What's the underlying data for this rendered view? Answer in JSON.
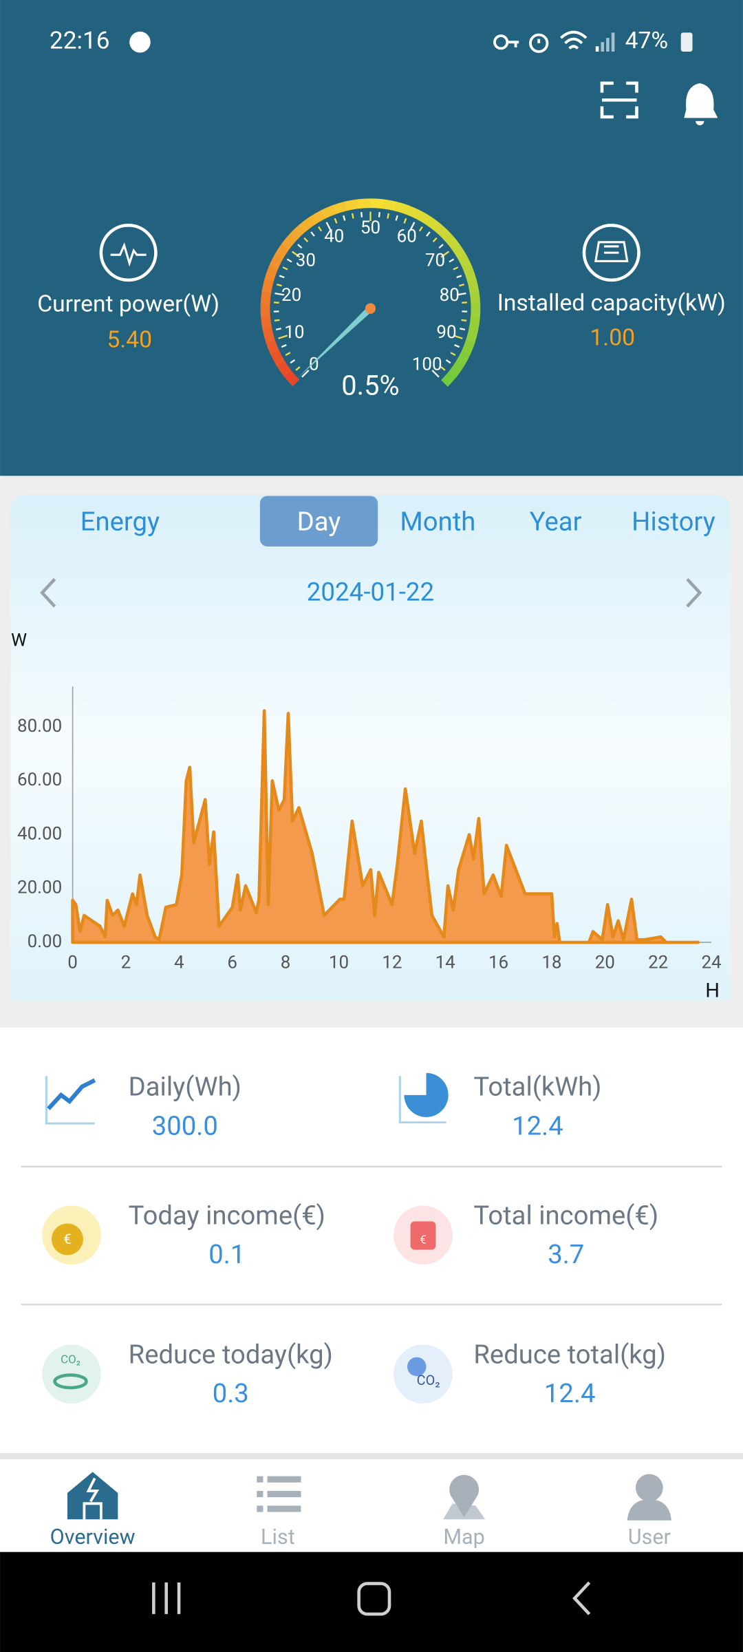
{
  "status_bar": {
    "time": "22:16",
    "battery": "47%"
  },
  "header": {
    "current_power": {
      "label": "Current power(W)",
      "value": "5.40"
    },
    "installed_capacity": {
      "label": "Installed capacity(kW)",
      "value": "1.00"
    },
    "gauge": {
      "ticks": [
        0,
        10,
        20,
        30,
        40,
        50,
        60,
        70,
        80,
        90,
        100
      ],
      "value": 0.5,
      "value_label": "0.5%"
    }
  },
  "tabs": {
    "items": [
      "Energy",
      "Day",
      "Month",
      "Year",
      "History"
    ],
    "selected": 1
  },
  "date": "2024-01-22",
  "chart_data": {
    "type": "area",
    "y_label": "W",
    "x_label": "H",
    "color": "#f39a4d",
    "line_color": "#e4891a",
    "xlim": [
      0,
      24
    ],
    "ylim": [
      0,
      95
    ],
    "xticks": [
      0,
      2,
      4,
      6,
      8,
      10,
      12,
      14,
      16,
      18,
      20,
      22,
      24
    ],
    "yticks": [
      {
        "value": 0,
        "label": "0.00"
      },
      {
        "value": 20,
        "label": "20.00"
      },
      {
        "value": 40,
        "label": "40.00"
      },
      {
        "value": 60,
        "label": "60.00"
      },
      {
        "value": 80,
        "label": "80.00"
      }
    ],
    "x": [
      0,
      0.12,
      0.28,
      0.43,
      1.03,
      1.22,
      1.3,
      1.5,
      1.7,
      1.94,
      2.25,
      2.4,
      2.53,
      2.8,
      3.1,
      3.25,
      3.5,
      3.9,
      4.1,
      4.27,
      4.4,
      4.55,
      4.98,
      5.14,
      5.3,
      5.5,
      6.0,
      6.2,
      6.3,
      6.5,
      6.9,
      7.0,
      7.2,
      7.35,
      7.5,
      7.75,
      7.95,
      8.1,
      8.26,
      8.5,
      9.0,
      9.45,
      10.04,
      10.2,
      10.5,
      10.9,
      11.2,
      11.35,
      11.5,
      12.0,
      12.2,
      12.5,
      12.85,
      13.1,
      13.3,
      13.5,
      13.95,
      14.1,
      14.3,
      14.5,
      14.9,
      15.06,
      15.26,
      15.46,
      15.8,
      16.1,
      16.3,
      17.0,
      17.3,
      17.8,
      18.0,
      18.1,
      18.2,
      18.3,
      19.4,
      19.55,
      19.9,
      20.1,
      20.3,
      20.5,
      20.7,
      21.0,
      21.2,
      21.5,
      22.1,
      22.3,
      23.5
    ],
    "values": [
      15.6,
      14,
      4,
      10,
      6,
      2,
      15.6,
      10,
      12,
      6,
      18,
      14,
      25,
      10,
      2,
      1,
      13,
      14,
      25,
      60,
      65,
      37,
      53,
      29,
      41,
      6,
      13,
      25,
      12,
      21,
      11,
      16,
      86,
      14,
      60,
      49,
      53,
      85,
      45,
      50,
      33,
      10,
      16,
      16,
      45,
      21,
      27,
      10,
      26,
      14,
      29,
      57,
      33,
      45,
      27,
      10,
      2,
      21,
      12,
      27,
      40,
      31,
      46,
      18,
      25,
      17,
      36,
      18,
      18,
      18,
      18,
      2,
      7,
      0,
      0,
      4,
      1,
      14,
      2,
      8,
      1,
      16,
      1,
      1,
      2,
      0,
      0
    ]
  },
  "stats": [
    {
      "label": "Daily(Wh)",
      "value": "300.0"
    },
    {
      "label": "Total(kWh)",
      "value": "12.4"
    },
    {
      "label": "Today income(€)",
      "value": "0.1"
    },
    {
      "label": "Total income(€)",
      "value": "3.7"
    },
    {
      "label": "Reduce today(kg)",
      "value": "0.3"
    },
    {
      "label": "Reduce total(kg)",
      "value": "12.4"
    }
  ],
  "nav": {
    "items": [
      "Overview",
      "List",
      "Map",
      "User"
    ],
    "selected": 0
  }
}
